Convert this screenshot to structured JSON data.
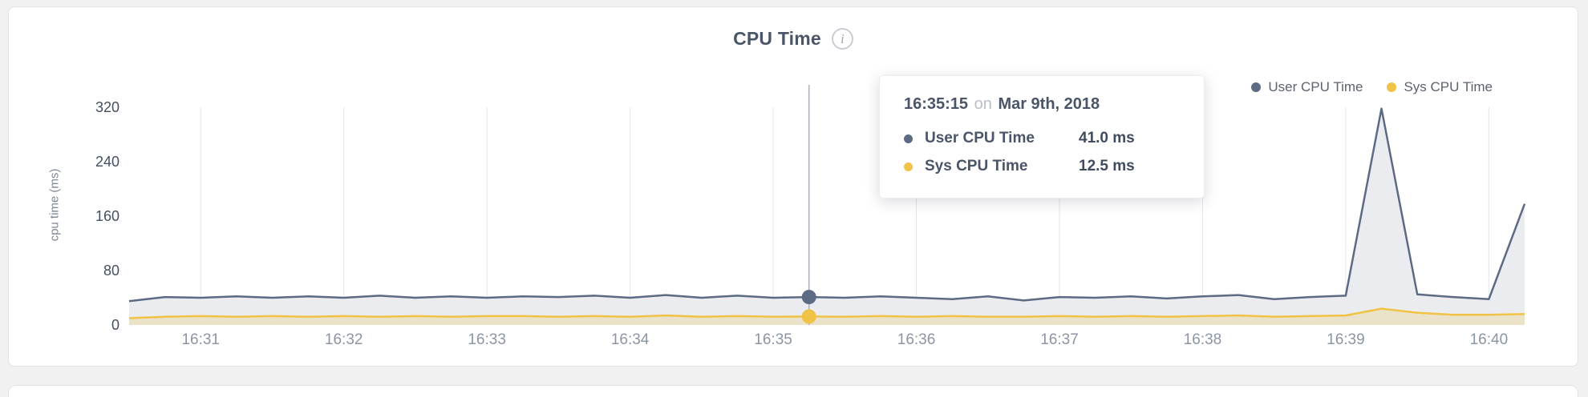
{
  "card": {
    "title": "CPU Time",
    "info_icon": "i"
  },
  "legend": {
    "items": [
      {
        "label": "User CPU Time",
        "color": "#5d6a84"
      },
      {
        "label": "Sys CPU Time",
        "color": "#f0c246"
      }
    ]
  },
  "tooltip": {
    "time": "16:35:15",
    "on_word": "on",
    "date": "Mar 9th, 2018",
    "rows": [
      {
        "label": "User CPU Time",
        "value": "41.0 ms",
        "color": "#5d6a84"
      },
      {
        "label": "Sys CPU Time",
        "value": "12.5 ms",
        "color": "#f0c246"
      }
    ]
  },
  "chart_data": {
    "type": "area",
    "title": "CPU Time",
    "xlabel": "",
    "ylabel": "cpu time (ms)",
    "ylim": [
      0,
      320
    ],
    "yticks": [
      320,
      240,
      160,
      80,
      0
    ],
    "grid": "vertical",
    "legend_position": "top-right",
    "x_unit": "minutes after 16:30",
    "x": [
      0.5,
      0.75,
      1,
      1.25,
      1.5,
      1.75,
      2,
      2.25,
      2.5,
      2.75,
      3,
      3.25,
      3.5,
      3.75,
      4,
      4.25,
      4.5,
      4.75,
      5,
      5.25,
      5.5,
      5.75,
      6,
      6.25,
      6.5,
      6.75,
      7,
      7.25,
      7.5,
      7.75,
      8,
      8.25,
      8.5,
      8.75,
      9,
      9.25,
      9.5,
      9.75,
      10,
      10.25
    ],
    "xticks": [
      {
        "v": 1,
        "label": "16:31"
      },
      {
        "v": 2,
        "label": "16:32"
      },
      {
        "v": 3,
        "label": "16:33"
      },
      {
        "v": 4,
        "label": "16:34"
      },
      {
        "v": 5,
        "label": "16:35"
      },
      {
        "v": 6,
        "label": "16:36"
      },
      {
        "v": 7,
        "label": "16:37"
      },
      {
        "v": 8,
        "label": "16:38"
      },
      {
        "v": 9,
        "label": "16:39"
      },
      {
        "v": 10,
        "label": "16:40"
      }
    ],
    "series": [
      {
        "name": "User CPU Time",
        "color": "#5d6a84",
        "fill": "#eaecef",
        "values": [
          35,
          41,
          40,
          42,
          40,
          42,
          40,
          43,
          40,
          42,
          40,
          42,
          41,
          43,
          40,
          44,
          40,
          43,
          40,
          41,
          40,
          42,
          40,
          38,
          42,
          36,
          41,
          40,
          42,
          39,
          42,
          44,
          38,
          41,
          43,
          318,
          45,
          41,
          38,
          178
        ]
      },
      {
        "name": "Sys CPU Time",
        "color": "#f0c246",
        "fill": "rgba(240,194,70,0.22)",
        "values": [
          10,
          12,
          13,
          12,
          13,
          12,
          13,
          12,
          13,
          12,
          13,
          13,
          12,
          13,
          12,
          14,
          12,
          13,
          12,
          12.5,
          12,
          13,
          12,
          13,
          12,
          12,
          13,
          12,
          13,
          12,
          13,
          14,
          12,
          13,
          14,
          24,
          18,
          15,
          15,
          16
        ]
      }
    ],
    "hover": {
      "x_minutes": 5.25,
      "time": "16:35:15",
      "date": "Mar 9th, 2018",
      "user_ms": 41.0,
      "sys_ms": 12.5
    }
  }
}
